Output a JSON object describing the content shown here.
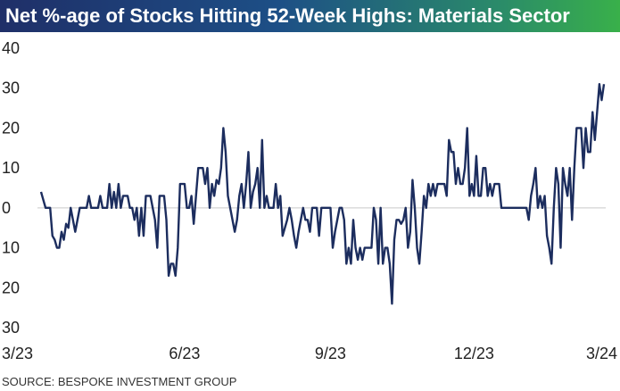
{
  "title": "Net %-age of Stocks Hitting 52-Week Highs: Materials Sector",
  "source": "SOURCE: BESPOKE INVESTMENT GROUP",
  "colors": {
    "line": "#1c2d5e",
    "zero_line": "#c9c9c9",
    "title_start": "#1f2f68",
    "title_end": "#39b04a"
  },
  "chart_data": {
    "type": "line",
    "title": "Net %-age of Stocks Hitting 52-Week Highs: Materials Sector",
    "xlabel": "",
    "ylabel": "",
    "ylim": [
      -30,
      40
    ],
    "y_ticks": [
      40,
      30,
      20,
      10,
      0,
      -10,
      -20,
      -30
    ],
    "y_tick_labels": [
      "40",
      "30",
      "20",
      "10",
      "0",
      "10",
      "20",
      "30"
    ],
    "x_ticks": [
      {
        "label": "3/23",
        "index": 0
      },
      {
        "label": "6/23",
        "index": 63
      },
      {
        "label": "9/23",
        "index": 127
      },
      {
        "label": "12/23",
        "index": 190
      },
      {
        "label": "3/24",
        "index": 253
      }
    ],
    "grid": false,
    "legend": "none",
    "series": [
      {
        "values": [
          4,
          2,
          0,
          0,
          0,
          -7,
          -8,
          -10,
          -10,
          -6,
          -8,
          -4,
          -5,
          0,
          -3,
          -6,
          -3,
          0,
          0,
          0,
          0,
          3,
          0,
          0,
          0,
          0,
          3,
          0,
          0,
          0,
          6,
          0,
          4,
          0,
          6,
          0,
          3,
          3,
          3,
          0,
          0,
          -3,
          0,
          -7,
          0,
          -7,
          3,
          3,
          3,
          0,
          -3,
          -10,
          3,
          3,
          3,
          -3,
          -17,
          -14,
          -14,
          -17,
          -10,
          6,
          6,
          6,
          0,
          0,
          3,
          -4,
          3,
          10,
          10,
          10,
          6,
          10,
          0,
          6,
          3,
          7,
          6,
          10,
          20,
          14,
          3,
          0,
          -3,
          -6,
          -3,
          3,
          6,
          0,
          6,
          14,
          0,
          4,
          6,
          10,
          0,
          17,
          0,
          3,
          0,
          0,
          0,
          6,
          0,
          3,
          -7,
          -5,
          -3,
          0,
          -3,
          -7,
          -10,
          -6,
          -3,
          0,
          -3,
          -3,
          -6,
          0,
          0,
          0,
          -7,
          0,
          0,
          0,
          0,
          0,
          -10,
          -6,
          -3,
          0,
          0,
          -3,
          -14,
          -10,
          -14,
          -3,
          -10,
          -13,
          -10,
          -13,
          -10,
          -10,
          -10,
          -10,
          0,
          -3,
          -14,
          0,
          -14,
          -10,
          -10,
          -14,
          -24,
          -8,
          -3,
          -3,
          -4,
          -3,
          0,
          -10,
          -6,
          7,
          0,
          -10,
          -14,
          -6,
          3,
          0,
          6,
          3,
          6,
          3,
          6,
          6,
          6,
          6,
          3,
          17,
          14,
          14,
          6,
          10,
          6,
          6,
          10,
          20,
          3,
          6,
          3,
          13,
          3,
          3,
          10,
          10,
          3,
          6,
          3,
          6,
          6,
          6,
          0,
          0,
          0,
          0,
          0,
          0,
          0,
          0,
          0,
          0,
          0,
          0,
          -3,
          3,
          6,
          10,
          0,
          3,
          0,
          3,
          -7,
          -10,
          -14,
          0,
          10,
          6,
          -10,
          10,
          6,
          3,
          10,
          -3,
          10,
          20,
          20,
          20,
          10,
          20,
          14,
          14,
          24,
          17,
          24,
          31,
          27,
          31
        ]
      }
    ]
  }
}
